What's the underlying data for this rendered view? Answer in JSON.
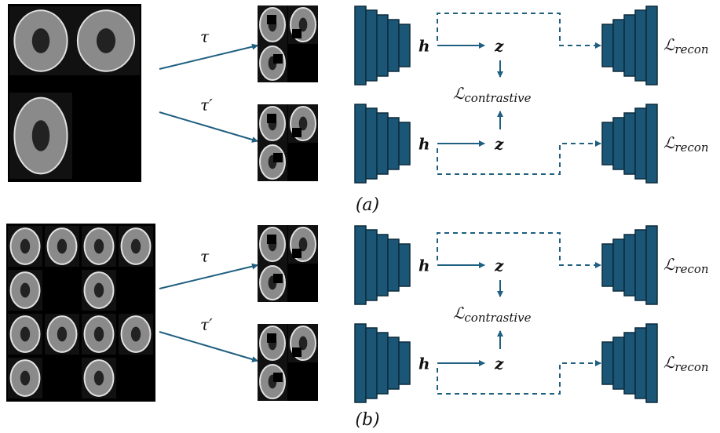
{
  "panels": [
    {
      "caption": "(a)",
      "contrastive": {
        "symbol": "ℒ",
        "subscript": "contrastive"
      },
      "branches": [
        {
          "augmentation": "τ",
          "encoder_output": "h",
          "latent": "z",
          "loss": {
            "symbol": "ℒ",
            "subscript": "recon"
          }
        },
        {
          "augmentation": "τ′",
          "encoder_output": "h",
          "latent": "z",
          "loss": {
            "symbol": "ℒ",
            "subscript": "recon"
          }
        }
      ]
    },
    {
      "caption": "(b)",
      "contrastive": {
        "symbol": "ℒ",
        "subscript": "contrastive"
      },
      "branches": [
        {
          "augmentation": "τ",
          "encoder_output": "h",
          "latent": "z",
          "loss": {
            "symbol": "ℒ",
            "subscript": "recon"
          }
        },
        {
          "augmentation": "τ′",
          "encoder_output": "h",
          "latent": "z",
          "loss": {
            "symbol": "ℒ",
            "subscript": "recon"
          }
        }
      ]
    }
  ]
}
